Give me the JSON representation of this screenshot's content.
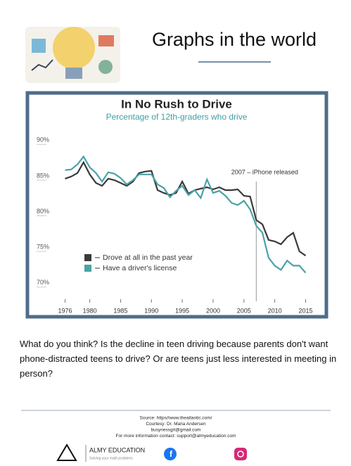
{
  "header": {
    "title": "Graphs in the world"
  },
  "chart_data": {
    "type": "line",
    "title": "In No Rush to Drive",
    "subtitle": "Percentage of 12th-graders who drive",
    "x": [
      1976,
      1977,
      1978,
      1979,
      1980,
      1981,
      1982,
      1983,
      1984,
      1985,
      1986,
      1987,
      1988,
      1989,
      1990,
      1991,
      1992,
      1993,
      1994,
      1995,
      1996,
      1997,
      1998,
      1999,
      2000,
      2001,
      2002,
      2003,
      2004,
      2005,
      2006,
      2007,
      2008,
      2009,
      2010,
      2011,
      2012,
      2013,
      2014,
      2015
    ],
    "series": [
      {
        "name": "Drove at all in the past year",
        "color": "#3a3a3a",
        "values": [
          85.2,
          85.5,
          86,
          87.5,
          85.8,
          84.6,
          84.2,
          85.2,
          85,
          84.6,
          84.2,
          84.8,
          86,
          86.2,
          86.3,
          83.6,
          83.2,
          82.9,
          83.2,
          84.8,
          83.1,
          83.6,
          83.8,
          84,
          83.7,
          84,
          83.6,
          83.6,
          83.7,
          82.8,
          82.7,
          79.4,
          78.8,
          76.6,
          76.4,
          76,
          77,
          77.6,
          75,
          74.4
        ]
      },
      {
        "name": "Have a driver's license",
        "color": "#4aa3a6",
        "values": [
          86.4,
          86.5,
          87.2,
          88.3,
          86.8,
          86,
          84.8,
          86.1,
          85.9,
          85.3,
          84.4,
          85,
          85.8,
          85.8,
          85.8,
          84.4,
          83.9,
          82.6,
          83.5,
          84.2,
          82.9,
          83.6,
          82.5,
          85.1,
          83.2,
          83.5,
          82.8,
          81.8,
          81.5,
          82.1,
          80.9,
          78.6,
          77.6,
          74.1,
          73,
          72.4,
          73.7,
          73,
          73,
          72
        ]
      }
    ],
    "xlim": [
      1974,
      2017
    ],
    "ylim": [
      68,
      92
    ],
    "xticks": [
      1976,
      1980,
      1985,
      1990,
      1995,
      2000,
      2005,
      2010,
      2015
    ],
    "yticks": [
      {
        "value": 70,
        "label": "70%"
      },
      {
        "value": 75,
        "label": "75%"
      },
      {
        "value": 80,
        "label": "80%"
      },
      {
        "value": 85,
        "label": "85%"
      },
      {
        "value": 90,
        "label": "90%"
      }
    ],
    "annotation": {
      "text": "2007 – iPhone released",
      "x": 2007
    },
    "legend": "lower left",
    "grid": false
  },
  "question": "What do you think? Is the decline in teen driving because parents don't want phone-distracted teens to drive? Or are teens just less interested in meeting in person?",
  "footer": {
    "lines": [
      "Source: https//www.theatlantic.com/",
      "Courtesy: Dr. Maria Andersen",
      "busynessgrl@gmail.com",
      "For more information contact: support@almyeducation.com"
    ],
    "brand": "ALMY EDUCATION",
    "tagline": "Solving your math problems"
  }
}
